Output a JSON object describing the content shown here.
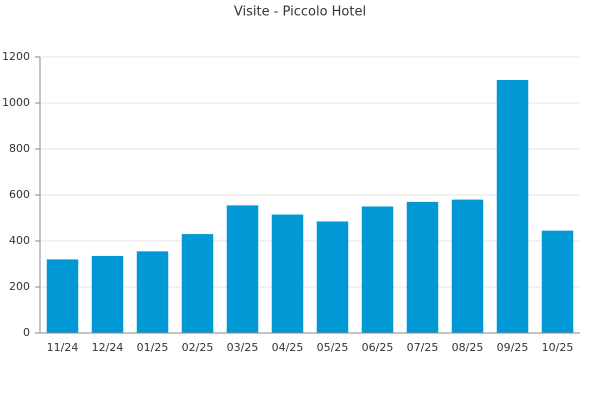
{
  "chart_data": {
    "type": "bar",
    "title": "Visite - Piccolo Hotel",
    "categories": [
      "11/24",
      "12/24",
      "01/25",
      "02/25",
      "03/25",
      "04/25",
      "05/25",
      "06/25",
      "07/25",
      "08/25",
      "09/25",
      "10/25"
    ],
    "values": [
      320,
      335,
      355,
      430,
      555,
      515,
      485,
      550,
      570,
      580,
      1100,
      445
    ],
    "color": "#0099d6",
    "ylim": [
      0,
      1200
    ],
    "yticks": [
      0,
      200,
      400,
      600,
      800,
      1000,
      1200
    ],
    "grid": true
  }
}
